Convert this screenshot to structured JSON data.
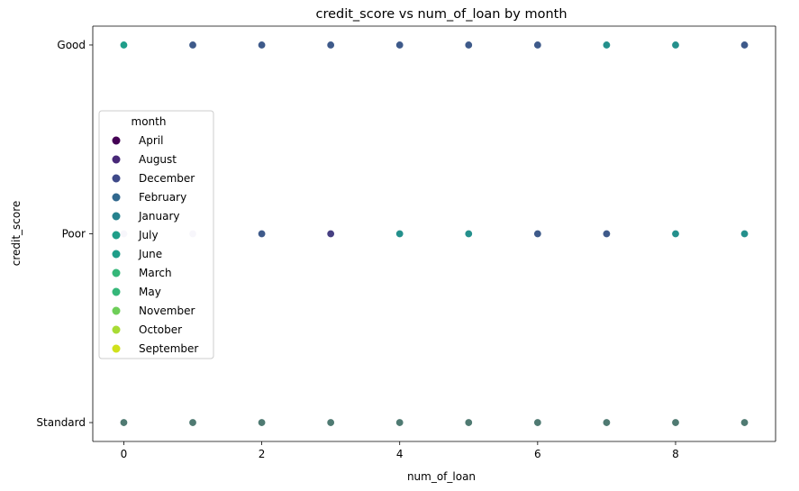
{
  "chart_data": {
    "type": "scatter",
    "title": "credit_score vs num_of_loan by month",
    "xlabel": "num_of_loan",
    "ylabel": "credit_score",
    "xlim": [
      -0.45,
      9.45
    ],
    "xticks": [
      0,
      2,
      4,
      6,
      8
    ],
    "y_categories": [
      "Good",
      "Poor",
      "Standard"
    ],
    "legend": {
      "title": "month",
      "placement": "center-left",
      "entries": [
        {
          "name": "April",
          "color": "#440154"
        },
        {
          "name": "August",
          "color": "#482878"
        },
        {
          "name": "December",
          "color": "#3e4989"
        },
        {
          "name": "February",
          "color": "#31688e"
        },
        {
          "name": "January",
          "color": "#26828e"
        },
        {
          "name": "July",
          "color": "#1f9e89"
        },
        {
          "name": "June",
          "color": "#1f9e89"
        },
        {
          "name": "March",
          "color": "#35b779"
        },
        {
          "name": "May",
          "color": "#35b779"
        },
        {
          "name": "November",
          "color": "#6ece58"
        },
        {
          "name": "October",
          "color": "#a8db34"
        },
        {
          "name": "September",
          "color": "#d0e11c"
        }
      ]
    },
    "points": [
      {
        "x": 0,
        "y": "Good",
        "color": "#1f9e89"
      },
      {
        "x": 1,
        "y": "Good",
        "color": "#3e5a8a"
      },
      {
        "x": 2,
        "y": "Good",
        "color": "#3e5a8a"
      },
      {
        "x": 3,
        "y": "Good",
        "color": "#3e5a8a"
      },
      {
        "x": 4,
        "y": "Good",
        "color": "#3e5a8a"
      },
      {
        "x": 5,
        "y": "Good",
        "color": "#3e5a8a"
      },
      {
        "x": 6,
        "y": "Good",
        "color": "#3e5a8a"
      },
      {
        "x": 7,
        "y": "Good",
        "color": "#24908c"
      },
      {
        "x": 8,
        "y": "Good",
        "color": "#24908c"
      },
      {
        "x": 9,
        "y": "Good",
        "color": "#3e5a8a"
      },
      {
        "x": 0,
        "y": "Poor",
        "color": "#d6d3e8"
      },
      {
        "x": 1,
        "y": "Poor",
        "color": "#d6d3e8"
      },
      {
        "x": 2,
        "y": "Poor",
        "color": "#3e5a8a"
      },
      {
        "x": 3,
        "y": "Poor",
        "color": "#463f82"
      },
      {
        "x": 4,
        "y": "Poor",
        "color": "#24908c"
      },
      {
        "x": 5,
        "y": "Poor",
        "color": "#24908c"
      },
      {
        "x": 6,
        "y": "Poor",
        "color": "#3e5a8a"
      },
      {
        "x": 7,
        "y": "Poor",
        "color": "#3e5a8a"
      },
      {
        "x": 8,
        "y": "Poor",
        "color": "#24908c"
      },
      {
        "x": 9,
        "y": "Poor",
        "color": "#24908c"
      },
      {
        "x": 0,
        "y": "Standard",
        "color": "#4f7a72"
      },
      {
        "x": 1,
        "y": "Standard",
        "color": "#4f7a72"
      },
      {
        "x": 2,
        "y": "Standard",
        "color": "#4f7a72"
      },
      {
        "x": 3,
        "y": "Standard",
        "color": "#4f7a72"
      },
      {
        "x": 4,
        "y": "Standard",
        "color": "#4f7a72"
      },
      {
        "x": 5,
        "y": "Standard",
        "color": "#4f7a72"
      },
      {
        "x": 6,
        "y": "Standard",
        "color": "#4f7a72"
      },
      {
        "x": 7,
        "y": "Standard",
        "color": "#4f7a72"
      },
      {
        "x": 8,
        "y": "Standard",
        "color": "#4f7a72"
      },
      {
        "x": 9,
        "y": "Standard",
        "color": "#4f7a72"
      }
    ]
  }
}
